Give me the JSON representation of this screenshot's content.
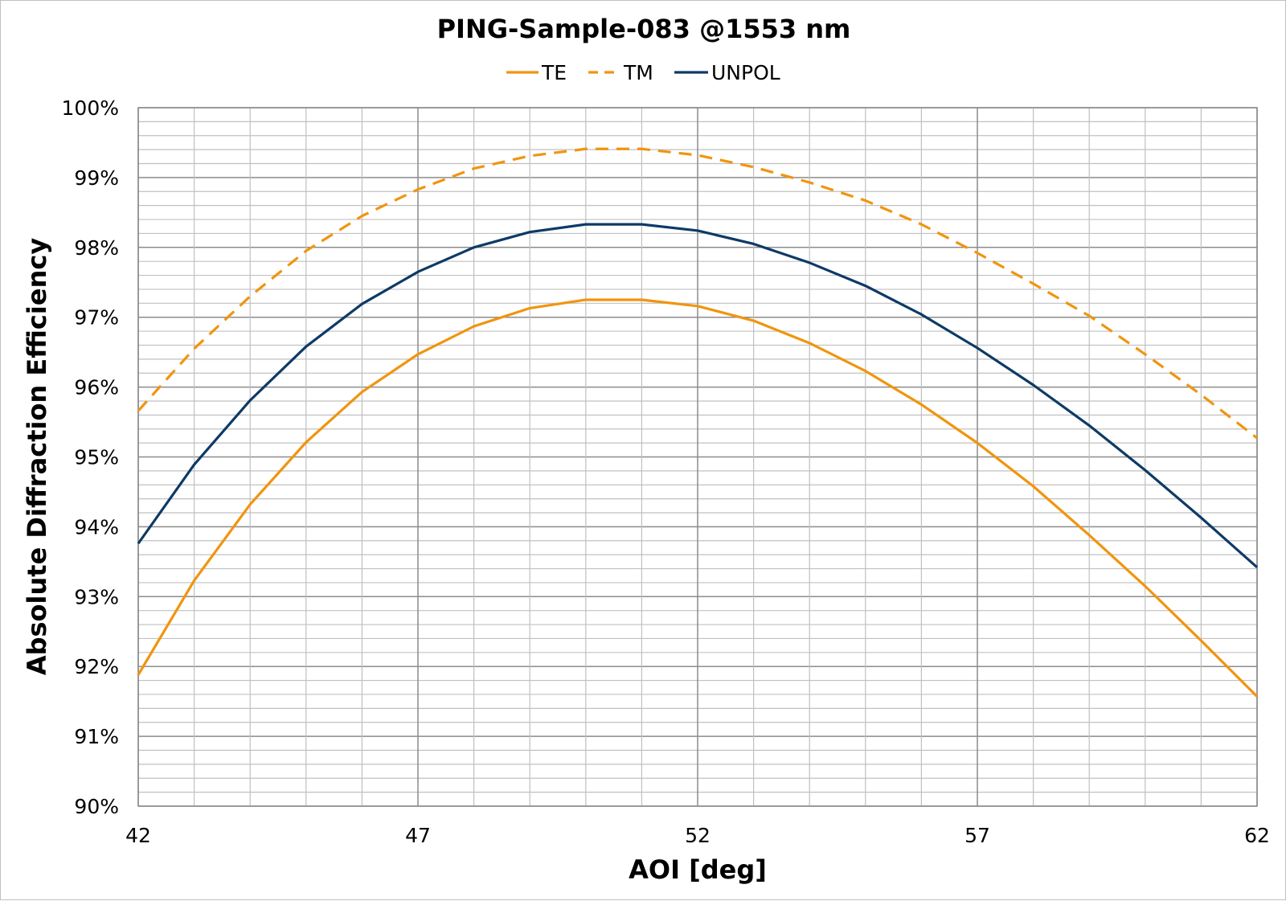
{
  "chart_data": {
    "type": "line",
    "title": "PING-Sample-083 @1553 nm",
    "xlabel": "AOI [deg]",
    "ylabel": "Absolute Diffraction Efficiency",
    "xlim": [
      42,
      62
    ],
    "ylim": [
      90,
      100
    ],
    "xticks": [
      42,
      47,
      52,
      57,
      62
    ],
    "yticks": [
      90,
      91,
      92,
      93,
      94,
      95,
      96,
      97,
      98,
      99,
      100
    ],
    "ytick_suffix": "%",
    "grid": true,
    "legend_position": "top-center",
    "x": [
      42,
      43,
      44,
      45,
      46,
      47,
      48,
      49,
      50,
      51,
      52,
      53,
      54,
      55,
      56,
      57,
      58,
      59,
      60,
      61,
      62
    ],
    "series": [
      {
        "name": "TE",
        "color": "#F0950F",
        "dash": false,
        "values": [
          91.88,
          93.23,
          94.32,
          95.21,
          95.93,
          96.47,
          96.87,
          97.13,
          97.25,
          97.25,
          97.16,
          96.95,
          96.63,
          96.23,
          95.75,
          95.2,
          94.58,
          93.88,
          93.15,
          92.37,
          91.57
        ]
      },
      {
        "name": "TM",
        "color": "#F0950F",
        "dash": true,
        "values": [
          95.66,
          96.55,
          97.3,
          97.95,
          98.45,
          98.83,
          99.13,
          99.31,
          99.41,
          99.41,
          99.32,
          99.15,
          98.93,
          98.67,
          98.33,
          97.92,
          97.48,
          97.02,
          96.47,
          95.89,
          95.27
        ]
      },
      {
        "name": "UNPOL",
        "color": "#0E3A66",
        "dash": false,
        "values": [
          93.76,
          94.89,
          95.81,
          96.58,
          97.19,
          97.65,
          98.0,
          98.22,
          98.33,
          98.33,
          98.24,
          98.05,
          97.78,
          97.45,
          97.04,
          96.56,
          96.03,
          95.45,
          94.81,
          94.13,
          93.42
        ]
      }
    ]
  }
}
